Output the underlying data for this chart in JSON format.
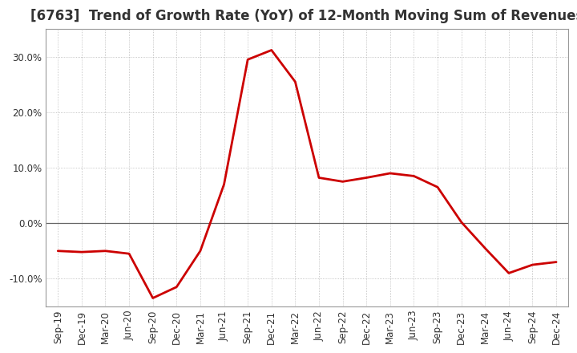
{
  "title": "[6763]  Trend of Growth Rate (YoY) of 12-Month Moving Sum of Revenues",
  "x_labels": [
    "Sep-19",
    "Dec-19",
    "Mar-20",
    "Jun-20",
    "Sep-20",
    "Dec-20",
    "Mar-21",
    "Jun-21",
    "Sep-21",
    "Dec-21",
    "Mar-22",
    "Jun-22",
    "Sep-22",
    "Dec-22",
    "Mar-23",
    "Jun-23",
    "Sep-23",
    "Dec-23",
    "Mar-24",
    "Jun-24",
    "Sep-24",
    "Dec-24"
  ],
  "y_values": [
    -5.0,
    -5.2,
    -5.0,
    -5.5,
    -13.5,
    -11.5,
    -5.0,
    7.0,
    29.5,
    31.2,
    25.5,
    8.2,
    7.5,
    8.2,
    9.0,
    8.5,
    6.5,
    0.2,
    -4.5,
    -9.0,
    -7.5,
    -7.0
  ],
  "line_color": "#cc0000",
  "background_color": "#ffffff",
  "plot_bg_color": "#ffffff",
  "grid_color": "#999999",
  "zero_line_color": "#666666",
  "border_color": "#999999",
  "ylim": [
    -15,
    35
  ],
  "yticks": [
    -10.0,
    0.0,
    10.0,
    20.0,
    30.0
  ],
  "title_fontsize": 12,
  "tick_fontsize": 8.5,
  "line_width": 2.0
}
